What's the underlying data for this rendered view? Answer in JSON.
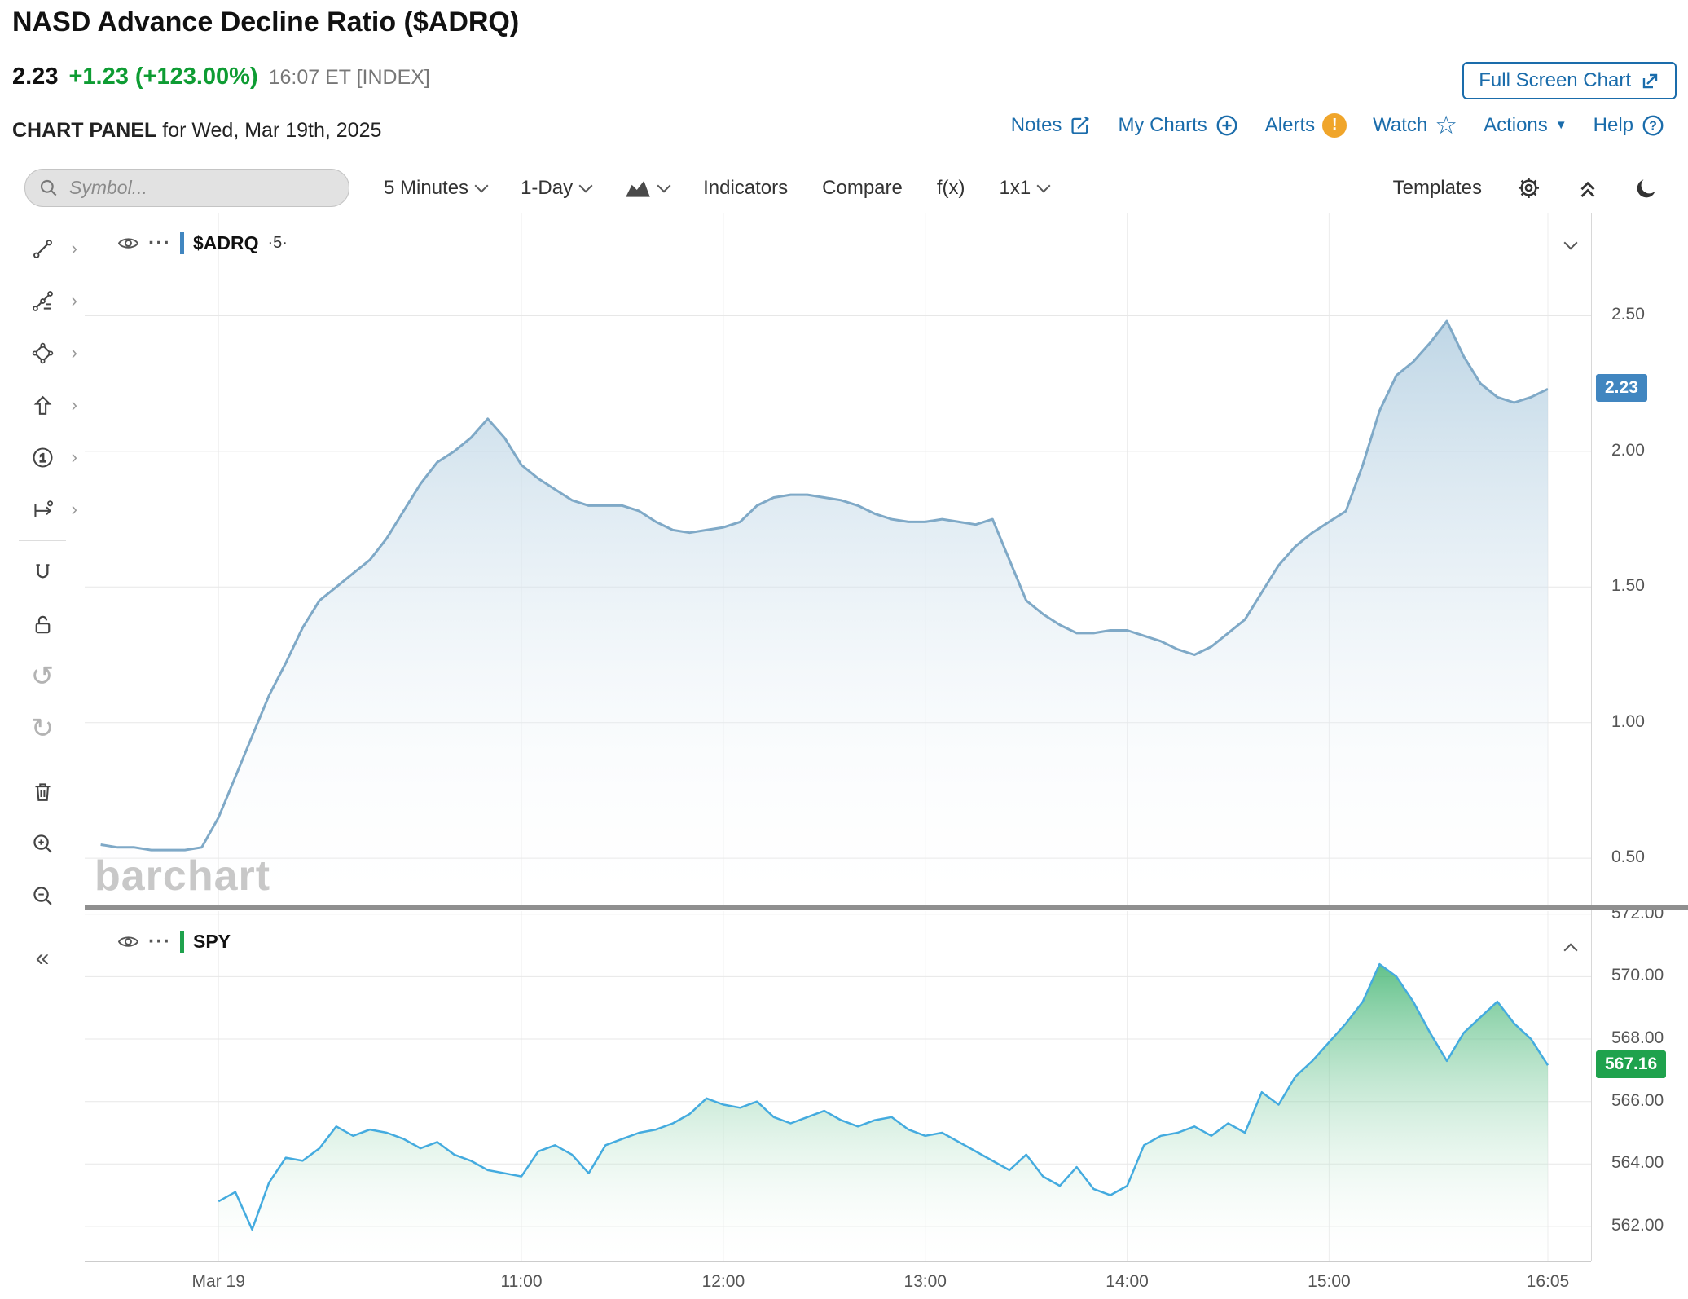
{
  "header": {
    "title": "NASD Advance Decline Ratio ($ADRQ)",
    "last_price": "2.23",
    "change": "+1.23 (+123.00%)",
    "timestamp": "16:07 ET [INDEX]",
    "fullscreen_button": "Full Screen Chart",
    "panel_title": "CHART PANEL",
    "panel_subtitle": " for Wed, Mar 19th, 2025",
    "nav_links": {
      "notes": "Notes",
      "my_charts": "My Charts",
      "alerts": "Alerts",
      "watch": "Watch",
      "actions": "Actions",
      "help": "Help"
    }
  },
  "toolbar": {
    "symbol_placeholder": "Symbol...",
    "interval": "5 Minutes",
    "range": "1-Day",
    "indicators": "Indicators",
    "compare": "Compare",
    "fx": "f(x)",
    "grid_layout": "1x1",
    "templates": "Templates"
  },
  "icons": {
    "undo": "↺",
    "redo": "↻",
    "collapse_sidebar": "«",
    "watch_star": "☆",
    "actions_caret": "▼",
    "tool_expand": "›",
    "more_dots": "···"
  },
  "chart": {
    "watermark": "barchart",
    "x_ticks": [
      {
        "label": "Mar 19",
        "time": "09:30"
      },
      {
        "label": "11:00",
        "time": "11:00"
      },
      {
        "label": "12:00",
        "time": "12:00"
      },
      {
        "label": "13:00",
        "time": "13:00"
      },
      {
        "label": "14:00",
        "time": "14:00"
      },
      {
        "label": "15:00",
        "time": "15:00"
      },
      {
        "label": "16:05",
        "time": "16:05"
      }
    ]
  },
  "chart_data": [
    {
      "type": "area",
      "symbol": "$ADRQ",
      "interval_label": "·5·",
      "start_time": "08:55",
      "interval_minutes": 5,
      "values": [
        0.55,
        0.54,
        0.54,
        0.53,
        0.53,
        0.53,
        0.54,
        0.65,
        0.8,
        0.95,
        1.1,
        1.22,
        1.35,
        1.45,
        1.5,
        1.55,
        1.6,
        1.68,
        1.78,
        1.88,
        1.96,
        2.0,
        2.05,
        2.12,
        2.05,
        1.95,
        1.9,
        1.86,
        1.82,
        1.8,
        1.8,
        1.8,
        1.78,
        1.74,
        1.71,
        1.7,
        1.71,
        1.72,
        1.74,
        1.8,
        1.83,
        1.84,
        1.84,
        1.83,
        1.82,
        1.8,
        1.77,
        1.75,
        1.74,
        1.74,
        1.75,
        1.74,
        1.73,
        1.75,
        1.6,
        1.45,
        1.4,
        1.36,
        1.33,
        1.33,
        1.34,
        1.34,
        1.32,
        1.3,
        1.27,
        1.25,
        1.28,
        1.33,
        1.38,
        1.48,
        1.58,
        1.65,
        1.7,
        1.74,
        1.78,
        1.95,
        2.15,
        2.28,
        2.33,
        2.4,
        2.48,
        2.35,
        2.25,
        2.2,
        2.18,
        2.2,
        2.23
      ],
      "last_value": 2.23,
      "last_label": "2.23",
      "y_ticks": [
        2.5,
        2.0,
        1.5,
        1.0,
        0.5
      ],
      "ylim": [
        0.32,
        2.88
      ],
      "line_color": "#7fa9c7",
      "fill_top": "#9cc0d8",
      "badge_color": "#4186c0"
    },
    {
      "type": "area",
      "symbol": "SPY",
      "interval_label": "",
      "start_time": "09:30",
      "interval_minutes": 5,
      "values": [
        562.8,
        563.1,
        561.9,
        563.4,
        564.2,
        564.1,
        564.5,
        565.2,
        564.9,
        565.1,
        565.0,
        564.8,
        564.5,
        564.7,
        564.3,
        564.1,
        563.8,
        563.7,
        563.6,
        564.4,
        564.6,
        564.3,
        563.7,
        564.6,
        564.8,
        565.0,
        565.1,
        565.3,
        565.6,
        566.1,
        565.9,
        565.8,
        566.0,
        565.5,
        565.3,
        565.5,
        565.7,
        565.4,
        565.2,
        565.4,
        565.5,
        565.1,
        564.9,
        565.0,
        564.7,
        564.4,
        564.1,
        563.8,
        564.3,
        563.6,
        563.3,
        563.9,
        563.2,
        563.0,
        563.3,
        564.6,
        564.9,
        565.0,
        565.2,
        564.9,
        565.3,
        565.0,
        566.3,
        565.9,
        566.8,
        567.3,
        567.9,
        568.5,
        569.2,
        570.4,
        570.0,
        569.2,
        568.2,
        567.3,
        568.2,
        568.7,
        569.2,
        568.5,
        568.0,
        567.16
      ],
      "last_value": 567.16,
      "last_label": "567.16",
      "y_ticks": [
        572.0,
        570.0,
        568.0,
        566.0,
        564.0,
        562.0
      ],
      "ylim": [
        560.9,
        572.1
      ],
      "line_color": "#44abdf",
      "fill_top": "#0fa14c",
      "badge_color": "#1fa24d"
    }
  ],
  "colors": {
    "link_blue": "#1a6cab",
    "positive_green": "#0e9c33",
    "alert_orange": "#f0a52a"
  }
}
